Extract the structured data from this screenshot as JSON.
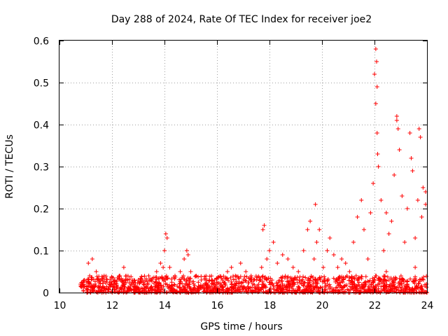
{
  "chart_data": {
    "type": "scatter",
    "title": "Day 288 of 2024, Rate Of TEC Index for receiver joe2",
    "xlabel": "GPS time / hours",
    "ylabel": "ROTI / TECUs",
    "xlim": [
      10,
      24
    ],
    "ylim": [
      0,
      0.6
    ],
    "x_ticks": [
      "10",
      "12",
      "14",
      "16",
      "18",
      "20",
      "22",
      "24"
    ],
    "y_ticks": [
      "0",
      "0.1",
      "0.2",
      "0.3",
      "0.4",
      "0.5",
      "0.6"
    ],
    "x_tick_values": [
      10,
      12,
      14,
      16,
      18,
      20,
      22,
      24
    ],
    "y_tick_values": [
      0,
      0.1,
      0.2,
      0.3,
      0.4,
      0.5,
      0.6
    ],
    "grid": true,
    "marker": "+",
    "series_color": "#ff0000",
    "x": [
      10.8,
      10.95,
      11.1,
      11.15,
      11.2,
      11.25,
      11.4,
      11.55,
      11.7,
      11.9,
      12.1,
      12.3,
      12.45,
      12.6,
      12.8,
      13.0,
      13.2,
      13.4,
      13.5,
      13.7,
      13.85,
      13.95,
      14.0,
      14.05,
      14.1,
      14.2,
      14.4,
      14.6,
      14.75,
      14.85,
      14.9,
      15.0,
      15.2,
      15.4,
      15.6,
      15.8,
      16.0,
      16.2,
      16.4,
      16.55,
      16.7,
      16.9,
      17.1,
      17.3,
      17.5,
      17.7,
      17.75,
      17.8,
      17.9,
      18.0,
      18.15,
      18.3,
      18.5,
      18.7,
      18.9,
      19.1,
      19.3,
      19.45,
      19.55,
      19.7,
      19.8,
      19.9,
      20.05,
      20.2,
      20.3,
      20.45,
      20.6,
      20.75,
      20.9,
      21.05,
      21.2,
      21.35,
      21.5,
      21.6,
      21.75,
      21.85,
      21.95,
      22.0,
      22.05,
      22.1,
      22.15,
      22.25,
      22.35,
      22.45,
      22.55,
      22.65,
      22.75,
      22.85,
      22.95,
      23.05,
      23.15,
      23.25,
      23.35,
      23.45,
      23.55,
      23.65,
      23.75,
      23.85,
      23.95,
      22.08,
      22.1,
      22.05,
      22.12,
      22.9,
      22.85,
      23.4,
      23.7,
      23.8,
      23.95,
      19.75,
      21.3,
      22.45,
      23.1,
      23.55
    ],
    "y": [
      0.02,
      0.03,
      0.07,
      0.04,
      0.02,
      0.08,
      0.05,
      0.03,
      0.04,
      0.02,
      0.03,
      0.04,
      0.06,
      0.03,
      0.02,
      0.03,
      0.02,
      0.04,
      0.03,
      0.05,
      0.07,
      0.06,
      0.1,
      0.14,
      0.13,
      0.06,
      0.04,
      0.05,
      0.08,
      0.1,
      0.09,
      0.05,
      0.04,
      0.03,
      0.02,
      0.03,
      0.02,
      0.03,
      0.05,
      0.06,
      0.04,
      0.07,
      0.05,
      0.04,
      0.03,
      0.06,
      0.15,
      0.16,
      0.08,
      0.1,
      0.12,
      0.07,
      0.09,
      0.08,
      0.06,
      0.05,
      0.1,
      0.15,
      0.17,
      0.08,
      0.12,
      0.15,
      0.06,
      0.1,
      0.13,
      0.09,
      0.06,
      0.08,
      0.07,
      0.05,
      0.12,
      0.18,
      0.22,
      0.15,
      0.08,
      0.19,
      0.26,
      0.52,
      0.58,
      0.38,
      0.3,
      0.22,
      0.1,
      0.19,
      0.14,
      0.17,
      0.28,
      0.42,
      0.34,
      0.23,
      0.12,
      0.2,
      0.38,
      0.29,
      0.13,
      0.22,
      0.37,
      0.25,
      0.21,
      0.55,
      0.49,
      0.45,
      0.33,
      0.39,
      0.41,
      0.32,
      0.39,
      0.18,
      0.24,
      0.21,
      0.04,
      0.05,
      0.03,
      0.06
    ],
    "dense_band": {
      "x_range": [
        10.8,
        24.0
      ],
      "y_range": [
        0.0,
        0.04
      ]
    }
  }
}
